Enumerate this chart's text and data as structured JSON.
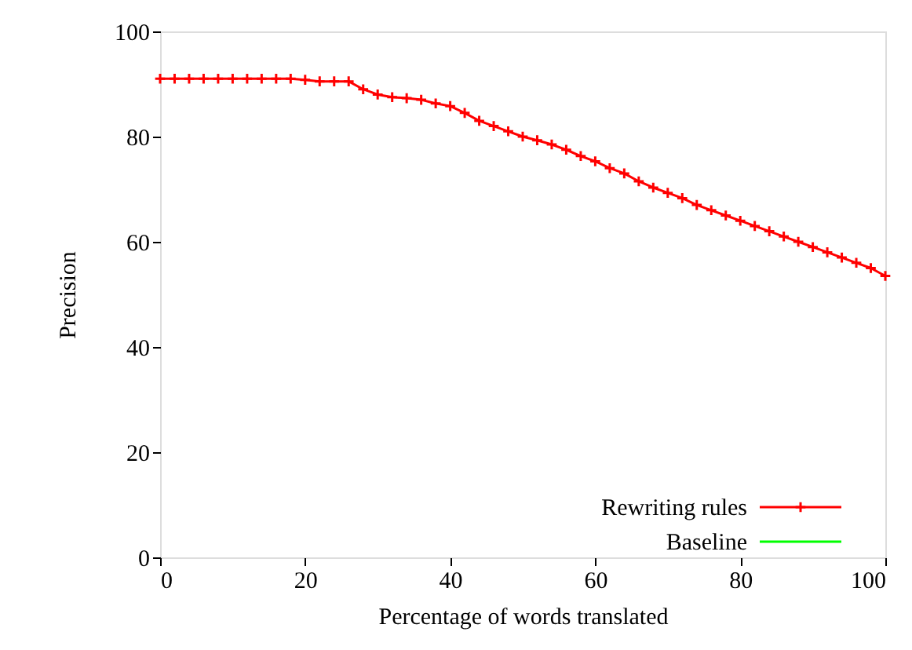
{
  "chart_data": {
    "type": "line",
    "xlabel": "Percentage of words translated",
    "ylabel": "Precision",
    "x": [
      0,
      2,
      4,
      6,
      8,
      10,
      12,
      14,
      16,
      18,
      20,
      22,
      24,
      26,
      28,
      30,
      32,
      34,
      36,
      38,
      40,
      42,
      44,
      46,
      48,
      50,
      52,
      54,
      56,
      58,
      60,
      62,
      64,
      66,
      68,
      70,
      72,
      74,
      76,
      78,
      80,
      82,
      84,
      86,
      88,
      90,
      92,
      94,
      96,
      98,
      100
    ],
    "series": [
      {
        "name": "Rewriting rules",
        "color": "#ff0000",
        "marker": "cross",
        "values": [
          91,
          91,
          91,
          91,
          91,
          91,
          91,
          91,
          91,
          91,
          90.8,
          90.5,
          90.5,
          90.5,
          89,
          88,
          87.5,
          87.3,
          87,
          86.3,
          85.8,
          84.5,
          83,
          82,
          81,
          80,
          79.3,
          78.5,
          77.5,
          76.3,
          75.3,
          74,
          73,
          71.5,
          70.3,
          69.3,
          68.3,
          67,
          66,
          65,
          64,
          63,
          62,
          61,
          60,
          59,
          58,
          57,
          56,
          55,
          53.5
        ]
      },
      {
        "name": "Baseline",
        "color": "#00ff00",
        "marker": "none",
        "values": [
          null,
          null,
          null,
          null,
          null,
          null,
          null,
          null,
          null,
          null,
          null,
          null,
          null,
          null,
          null,
          null,
          null,
          null,
          null,
          null,
          null,
          null,
          null,
          null,
          null,
          null,
          null,
          null,
          null,
          null,
          null,
          null,
          null,
          null,
          null,
          null,
          null,
          null,
          null,
          null,
          null,
          null,
          null,
          null,
          null,
          null,
          null,
          null,
          null,
          null,
          null
        ]
      }
    ],
    "xlim": [
      0,
      100
    ],
    "xticks": [
      0,
      20,
      40,
      60,
      80,
      100
    ],
    "ylim": [
      0,
      100
    ],
    "yticks": [
      0,
      20,
      40,
      60,
      80,
      100
    ],
    "grid": false,
    "legend": "bottom right",
    "line_style": "solid"
  }
}
